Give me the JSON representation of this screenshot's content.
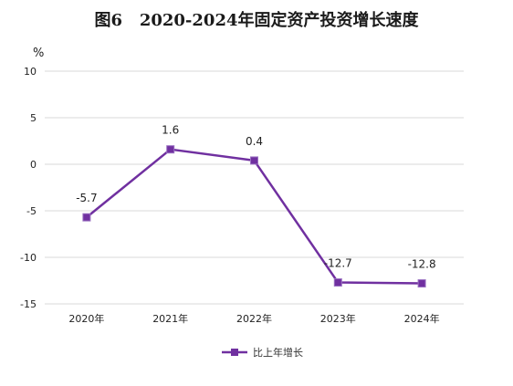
{
  "chart_data": {
    "type": "line",
    "title": "图6   2020-2024年固定资产投资增长速度",
    "unit": "%",
    "categories": [
      "2020年",
      "2021年",
      "2022年",
      "2023年",
      "2024年"
    ],
    "series": [
      {
        "name": "比上年增长",
        "values": [
          -5.7,
          1.6,
          0.4,
          -12.7,
          -12.8
        ],
        "color": "#7030a0"
      }
    ],
    "data_labels": [
      "-5.7",
      "1.6",
      "0.4",
      "-12.7",
      "-12.8"
    ],
    "yticks": [
      10,
      5,
      0,
      -5,
      -10,
      -15
    ],
    "ylim": [
      -15,
      10
    ],
    "grid": true,
    "legend_position": "bottom"
  }
}
